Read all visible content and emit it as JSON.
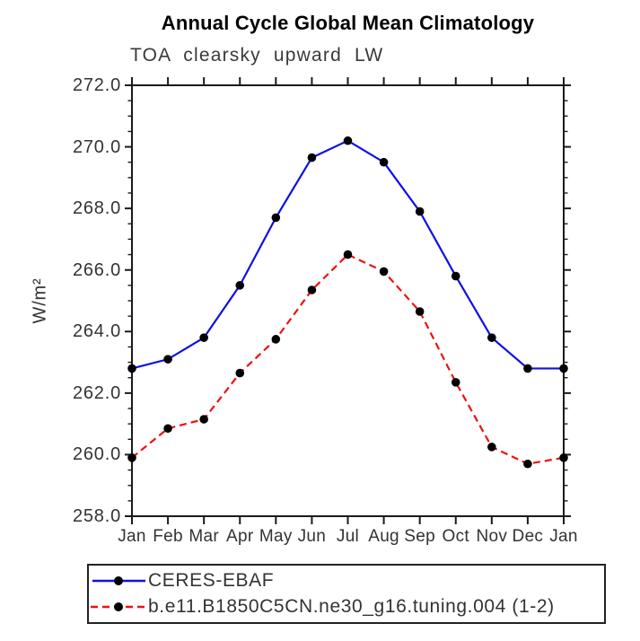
{
  "header": {
    "title": "Annual Cycle Global Mean Climatology",
    "subtitle": "TOA clearsky upward LW"
  },
  "chart_data": {
    "type": "line",
    "title": "Annual Cycle Global Mean Climatology",
    "subtitle": "TOA clearsky upward LW",
    "xlabel": "",
    "ylabel": "W/m²",
    "x_categories": [
      "Jan",
      "Feb",
      "Mar",
      "Apr",
      "May",
      "Jun",
      "Jul",
      "Aug",
      "Sep",
      "Oct",
      "Nov",
      "Dec",
      "Jan"
    ],
    "ylim": [
      258.0,
      272.0
    ],
    "ytick_step": 2.0,
    "ytick_minor_step": 0.5,
    "ytick_label_format": "one_decimal",
    "grid": "off",
    "legend_position": "bottom-left-box",
    "marker_color": "#000000",
    "axis_color": "#1a1a1a",
    "series": [
      {
        "name": "CERES-EBAF",
        "color": "#0f0fe8",
        "style": "solid",
        "values": [
          262.8,
          263.1,
          263.8,
          265.5,
          267.7,
          269.65,
          270.2,
          269.5,
          267.9,
          265.8,
          263.8,
          262.8,
          262.8
        ]
      },
      {
        "name": "b.e11.B1850C5CN.ne30_g16.tuning.004 (1-2)",
        "color": "#ee1111",
        "style": "dashed",
        "values": [
          259.9,
          260.85,
          261.15,
          262.65,
          263.75,
          265.35,
          266.5,
          265.95,
          264.65,
          262.35,
          260.25,
          259.7,
          259.9
        ]
      }
    ]
  }
}
